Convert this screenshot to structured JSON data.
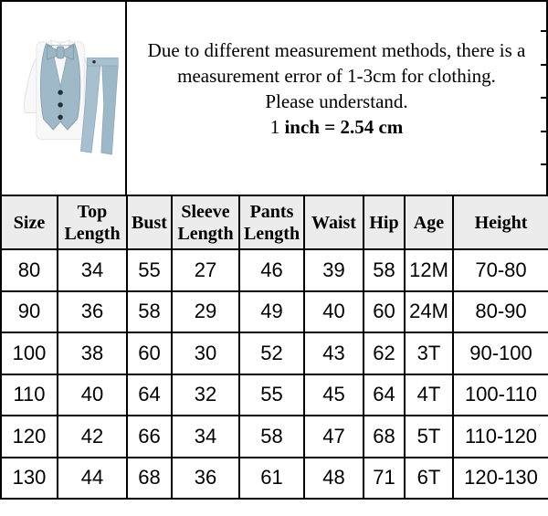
{
  "notice": {
    "line1": "Due to different measurement methods, there is a",
    "line2": "measurement error of 1-3cm for clothing.",
    "line3": "Please understand.",
    "line4_prefix": "1 ",
    "line4_bold": "inch = 2.54 cm"
  },
  "product_image": {
    "description": "boys formal outfit: white shirt, light blue vest with bow tie, light blue pants",
    "shirt_color": "#f8f8f8",
    "vest_color": "#9fb9c8",
    "bowtie_color": "#9cb6c5",
    "pants_color": "#a6c0d0",
    "pants_leg2_color": "#9db8c9",
    "button_color": "#232e38"
  },
  "size_chart": {
    "type": "table",
    "columns": [
      "Size",
      "Top Length",
      "Bust",
      "Sleeve Length",
      "Pants Length",
      "Waist",
      "Hip",
      "Age",
      "Height"
    ],
    "rows": [
      [
        "80",
        "34",
        "55",
        "27",
        "46",
        "39",
        "58",
        "12M",
        "70-80"
      ],
      [
        "90",
        "36",
        "58",
        "29",
        "49",
        "40",
        "60",
        "24M",
        "80-90"
      ],
      [
        "100",
        "38",
        "60",
        "30",
        "52",
        "43",
        "62",
        "3T",
        "90-100"
      ],
      [
        "110",
        "40",
        "64",
        "32",
        "55",
        "45",
        "64",
        "4T",
        "100-110"
      ],
      [
        "120",
        "42",
        "66",
        "34",
        "58",
        "47",
        "68",
        "5T",
        "110-120"
      ],
      [
        "130",
        "44",
        "68",
        "36",
        "61",
        "48",
        "71",
        "6T",
        "120-130"
      ]
    ]
  },
  "colors": {
    "border": "#000000",
    "header_bg": "#ececec",
    "text": "#000000"
  }
}
